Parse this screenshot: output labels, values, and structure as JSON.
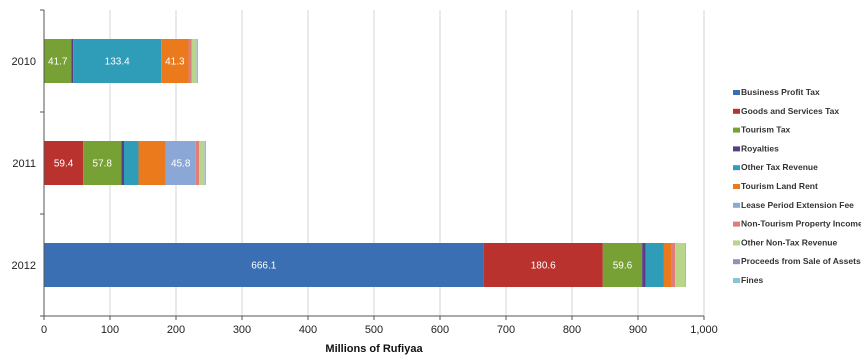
{
  "chart_data": {
    "type": "bar",
    "orientation": "horizontal",
    "stacked": true,
    "title": "",
    "xlabel": "Millions of Rufiyaa",
    "ylabel": "",
    "xlim": [
      0,
      1000
    ],
    "x_ticks": [
      0,
      100,
      200,
      300,
      400,
      500,
      600,
      700,
      800,
      900,
      1000
    ],
    "x_tick_labels": [
      "0",
      "100",
      "200",
      "300",
      "400",
      "500",
      "600",
      "700",
      "800",
      "900",
      "1,000"
    ],
    "grid": "vertical",
    "legend_position": "right",
    "categories": [
      "2010",
      "2011",
      "2012"
    ],
    "series": [
      {
        "name": "Business Profit Tax",
        "color": "#3a6fb3",
        "values": [
          0,
          0,
          666.1
        ]
      },
      {
        "name": "Goods and Services Tax",
        "color": "#b9322d",
        "values": [
          0,
          59.4,
          180.6
        ]
      },
      {
        "name": "Tourism Tax",
        "color": "#77a035",
        "values": [
          41.7,
          57.8,
          59.6
        ]
      },
      {
        "name": "Royalties",
        "color": "#5b3d86",
        "values": [
          2.5,
          4,
          5
        ]
      },
      {
        "name": "Other Tax Revenue",
        "color": "#2f9cb8",
        "values": [
          133.4,
          22,
          28
        ]
      },
      {
        "name": "Tourism Land Rent",
        "color": "#ea7a1c",
        "values": [
          41.3,
          41,
          12
        ]
      },
      {
        "name": "Lease Period Extension Fee",
        "color": "#8aa7d6",
        "values": [
          0,
          45.8,
          0
        ]
      },
      {
        "name": "Non-Tourism Property Income",
        "color": "#df7d7a",
        "values": [
          5,
          5,
          5
        ]
      },
      {
        "name": "Other Non-Tax Revenue",
        "color": "#b9d58a",
        "values": [
          7,
          8,
          15
        ]
      },
      {
        "name": "Proceeds from Sale of Assets",
        "color": "#9d8cba",
        "values": [
          0.5,
          0.5,
          0.5
        ]
      },
      {
        "name": "Fines",
        "color": "#88c6d7",
        "values": [
          2,
          2,
          1
        ]
      }
    ],
    "data_labels": [
      {
        "category": "2010",
        "series": "Tourism Tax",
        "text": "41.7"
      },
      {
        "category": "2010",
        "series": "Other Tax Revenue",
        "text": "133.4"
      },
      {
        "category": "2010",
        "series": "Tourism Land Rent",
        "text": "41.3"
      },
      {
        "category": "2011",
        "series": "Goods and Services Tax",
        "text": "59.4"
      },
      {
        "category": "2011",
        "series": "Tourism Tax",
        "text": "57.8"
      },
      {
        "category": "2011",
        "series": "Lease Period Extension Fee",
        "text": "45.8"
      },
      {
        "category": "2012",
        "series": "Business Profit Tax",
        "text": "666.1"
      },
      {
        "category": "2012",
        "series": "Goods and Services Tax",
        "text": "180.6"
      },
      {
        "category": "2012",
        "series": "Tourism Tax",
        "text": "59.6"
      }
    ]
  }
}
